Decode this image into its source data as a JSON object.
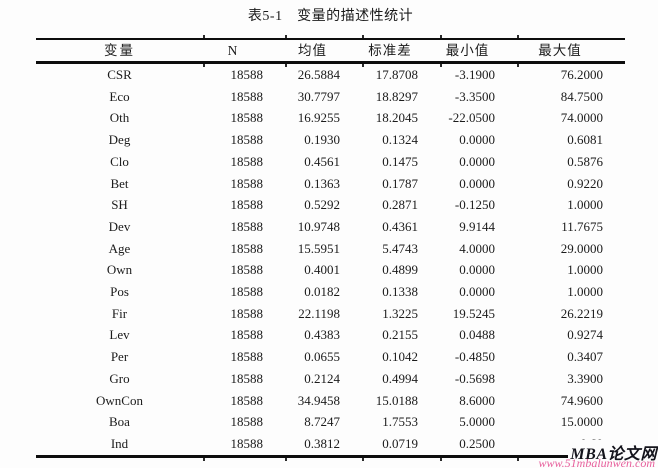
{
  "page": {
    "background": "#fdfdfd",
    "text_color": "#1b1b1b",
    "rule_color": "#0d0d0d"
  },
  "table": {
    "title": "表5-1　变量的描述性统计",
    "columns": [
      "变量",
      "N",
      "均值",
      "标准差",
      "最小值",
      "最大值"
    ],
    "rows": [
      [
        "CSR",
        "18588",
        "26.5884",
        "17.8708",
        "-3.1900",
        "76.2000"
      ],
      [
        "Eco",
        "18588",
        "30.7797",
        "18.8297",
        "-3.3500",
        "84.7500"
      ],
      [
        "Oth",
        "18588",
        "16.9255",
        "18.2045",
        "-22.0500",
        "74.0000"
      ],
      [
        "Deg",
        "18588",
        "0.1930",
        "0.1324",
        "0.0000",
        "0.6081"
      ],
      [
        "Clo",
        "18588",
        "0.4561",
        "0.1475",
        "0.0000",
        "0.5876"
      ],
      [
        "Bet",
        "18588",
        "0.1363",
        "0.1787",
        "0.0000",
        "0.9220"
      ],
      [
        "SH",
        "18588",
        "0.5292",
        "0.2871",
        "-0.1250",
        "1.0000"
      ],
      [
        "Dev",
        "18588",
        "10.9748",
        "0.4361",
        "9.9144",
        "11.7675"
      ],
      [
        "Age",
        "18588",
        "15.5951",
        "5.4743",
        "4.0000",
        "29.0000"
      ],
      [
        "Own",
        "18588",
        "0.4001",
        "0.4899",
        "0.0000",
        "1.0000"
      ],
      [
        "Pos",
        "18588",
        "0.0182",
        "0.1338",
        "0.0000",
        "1.0000"
      ],
      [
        "Fir",
        "18588",
        "22.1198",
        "1.3225",
        "19.5245",
        "26.2219"
      ],
      [
        "Lev",
        "18588",
        "0.4383",
        "0.2155",
        "0.0488",
        "0.9274"
      ],
      [
        "Per",
        "18588",
        "0.0655",
        "0.1042",
        "-0.4850",
        "0.3407"
      ],
      [
        "Gro",
        "18588",
        "0.2124",
        "0.4994",
        "-0.5698",
        "3.3900"
      ],
      [
        "OwnCon",
        "18588",
        "34.9458",
        "15.0188",
        "8.6000",
        "74.9600"
      ],
      [
        "Boa",
        "18588",
        "8.7247",
        "1.7553",
        "5.0000",
        "15.0000"
      ],
      [
        "Ind",
        "18588",
        "0.3812",
        "0.0719",
        "0.2500",
        "0.60"
      ]
    ]
  },
  "watermark": {
    "brand": "MBA论文网",
    "url": "www.51mbalunwen.com",
    "brand_color": "#14141c",
    "url_color": "#e75f9c"
  }
}
